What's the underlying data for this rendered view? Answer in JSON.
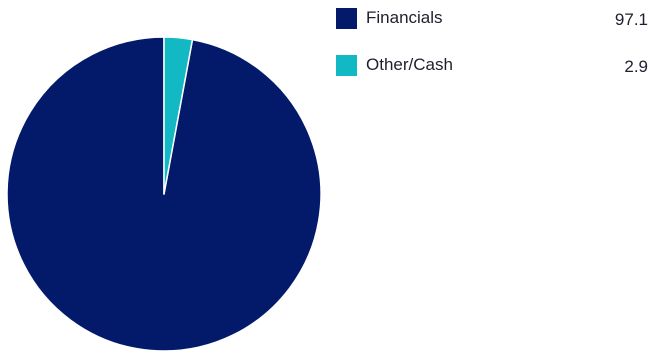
{
  "chart_data": {
    "type": "pie",
    "slices": [
      {
        "label": "Financials",
        "value": 97.1,
        "color": "#031a6b"
      },
      {
        "label": "Other/Cash",
        "value": 2.9,
        "color": "#12b8c3"
      }
    ],
    "legend_position": "top-right"
  }
}
